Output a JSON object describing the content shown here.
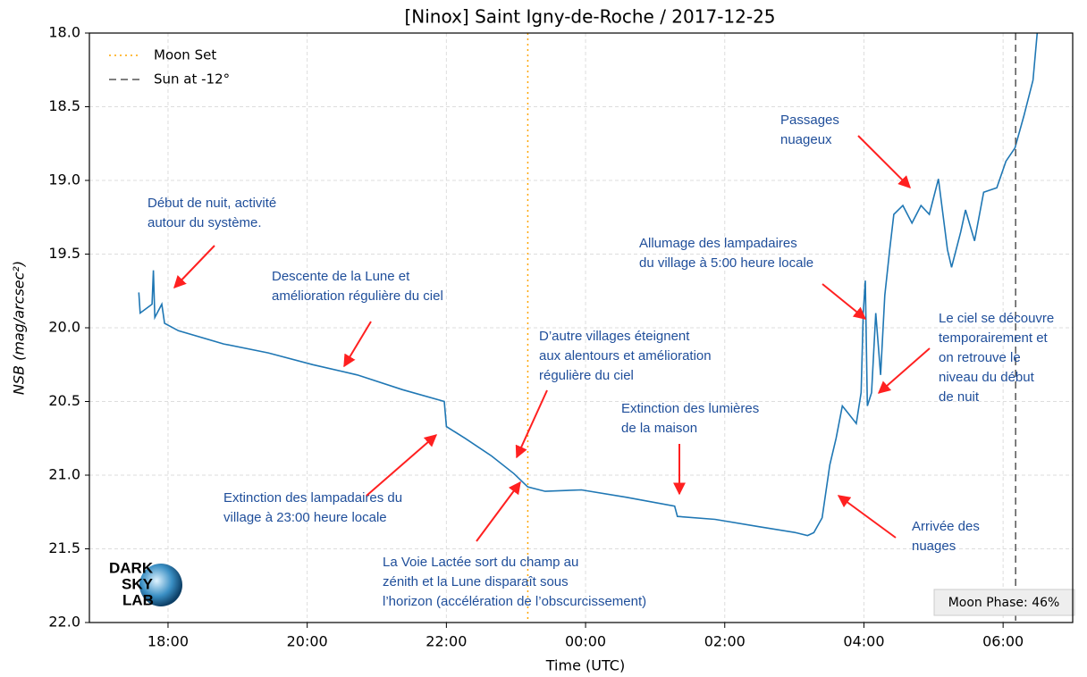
{
  "chart_data": {
    "type": "line",
    "title": "[Ninox] Saint Igny-de-Roche / 2017-12-25",
    "xlabel": "Time (UTC)",
    "ylabel": "NSB (mag/arcsec²)",
    "x": [
      17.58,
      17.6,
      17.77,
      17.79,
      17.81,
      17.91,
      17.95,
      18.15,
      18.8,
      19.44,
      20.08,
      20.72,
      21.37,
      21.97,
      22.0,
      22.27,
      22.65,
      22.97,
      23.17,
      23.42,
      23.94,
      24.58,
      25.28,
      25.32,
      25.86,
      26.5,
      27.02,
      27.19,
      27.28,
      27.4,
      27.51,
      27.6,
      27.69,
      27.79,
      27.89,
      27.96,
      27.99,
      28.02,
      28.05,
      28.11,
      28.17,
      28.24,
      28.3,
      28.37,
      28.43,
      28.56,
      28.69,
      28.82,
      28.94,
      29.07,
      29.2,
      29.26,
      29.39,
      29.46,
      29.59,
      29.72,
      29.91,
      30.04,
      30.17,
      30.3,
      30.43,
      30.49
    ],
    "series": [
      {
        "name": "NSB",
        "color": "#1f77b4",
        "values": [
          19.76,
          19.9,
          19.84,
          19.61,
          19.93,
          19.84,
          19.97,
          20.02,
          20.11,
          20.17,
          20.25,
          20.32,
          20.42,
          20.5,
          20.67,
          20.75,
          20.87,
          20.99,
          21.08,
          21.11,
          21.1,
          21.15,
          21.21,
          21.28,
          21.3,
          21.35,
          21.39,
          21.41,
          21.39,
          21.29,
          20.93,
          20.75,
          20.53,
          20.59,
          20.65,
          20.44,
          19.9,
          19.68,
          20.53,
          20.44,
          19.9,
          20.32,
          19.78,
          19.47,
          19.23,
          19.17,
          19.29,
          19.17,
          19.23,
          18.99,
          19.47,
          19.59,
          19.35,
          19.2,
          19.41,
          19.08,
          19.05,
          18.87,
          18.78,
          18.56,
          18.32,
          18.0
        ]
      }
    ],
    "vlines": [
      {
        "name": "Moon Set",
        "x": 23.17,
        "color": "#ffa500",
        "dash": "2,4"
      },
      {
        "name": "Sun at -12°",
        "x": 30.18,
        "color": "#555555",
        "dash": "8,5"
      }
    ],
    "xlim": [
      16.87,
      31.0
    ],
    "ylim": [
      18.0,
      22.0
    ],
    "inverted_y": true,
    "grid": true,
    "legend": "upper left",
    "xticks": [
      {
        "value": 18,
        "label": "18:00"
      },
      {
        "value": 20,
        "label": "20:00"
      },
      {
        "value": 22,
        "label": "22:00"
      },
      {
        "value": 24,
        "label": "00:00"
      },
      {
        "value": 26,
        "label": "02:00"
      },
      {
        "value": 28,
        "label": "04:00"
      },
      {
        "value": 30,
        "label": "06:00"
      }
    ],
    "yticks": [
      {
        "value": 18,
        "label": "18.0"
      },
      18.5,
      {
        "value": 19,
        "label": "19.0"
      },
      19.5,
      {
        "value": 20,
        "label": "20.0"
      },
      20.5,
      {
        "value": 21,
        "label": "21.0"
      },
      21.5,
      {
        "value": 22,
        "label": "22.0"
      }
    ],
    "annotations": [
      [
        "Début de nuit, activité",
        "autour du système."
      ],
      [
        "Descente de la Lune et",
        "amélioration régulière du ciel"
      ],
      [
        "D’autre villages éteignent",
        "aux alentours et amélioration",
        "régulière du ciel"
      ],
      [
        "Extinction des lumières",
        "de la maison"
      ],
      [
        "Extinction des lampadaires du",
        "village à 23:00 heure locale"
      ],
      [
        "La Voie Lactée sort du champ au",
        "zénith et la Lune disparaît sous",
        "l’horizon (accélération de l’obscurcissement)"
      ],
      [
        "Allumage des lampadaires",
        "du village à 5:00 heure locale"
      ],
      [
        "Passages",
        "nuageux"
      ],
      [
        "Le ciel se découvre",
        "temporairement et",
        "on retrouve le",
        "niveau du début",
        "de nuit"
      ],
      [
        "Arrivée des",
        "nuages"
      ]
    ],
    "moon_phase": "Moon Phase: 46%",
    "logo": [
      "DARK",
      "SKY",
      "LAB"
    ]
  }
}
